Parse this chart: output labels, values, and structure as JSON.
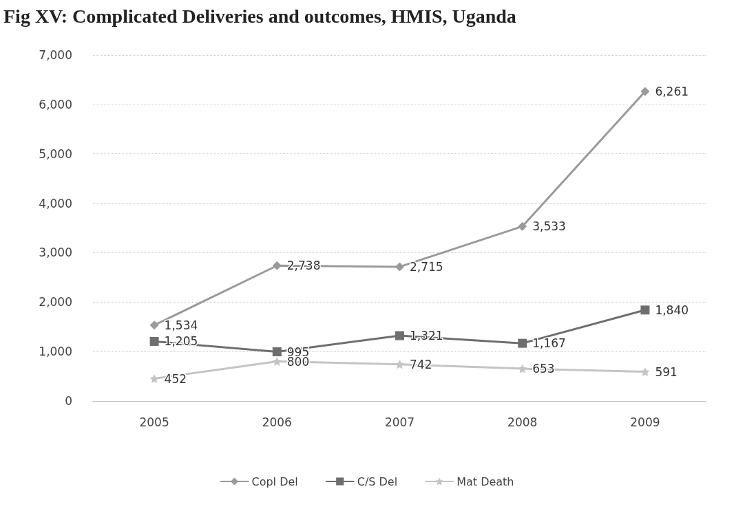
{
  "chart_data": {
    "type": "line",
    "title": "Fig XV: Complicated Deliveries and outcomes, HMIS, Uganda",
    "categories": [
      "2005",
      "2006",
      "2007",
      "2008",
      "2009"
    ],
    "series": [
      {
        "name": "Copl Del",
        "color": "#9a9a9a",
        "marker": "diamond",
        "values": [
          1534,
          2738,
          2715,
          3533,
          6261
        ],
        "value_labels": [
          "1,534",
          "2,738",
          "2,715",
          "3,533",
          "6,261"
        ]
      },
      {
        "name": "C/S Del",
        "color": "#6e6e6e",
        "marker": "square",
        "values": [
          1205,
          995,
          1321,
          1167,
          1840
        ],
        "value_labels": [
          "1,205",
          "995",
          "1,321",
          "1,167",
          "1,840"
        ]
      },
      {
        "name": "Mat Death",
        "color": "#c4c4c4",
        "marker": "star",
        "values": [
          452,
          800,
          742,
          653,
          591
        ],
        "value_labels": [
          "452",
          "800",
          "742",
          "653",
          "591"
        ]
      }
    ],
    "ylim": [
      0,
      7000
    ],
    "yticks": [
      0,
      {
        "value": 1000,
        "label": "1,000"
      },
      {
        "value": 2000,
        "label": "2,000"
      },
      {
        "value": 3000,
        "label": "3,000"
      },
      {
        "value": 4000,
        "label": "4,000"
      },
      {
        "value": 5000,
        "label": "5,000"
      },
      {
        "value": 6000,
        "label": "6,000"
      },
      {
        "value": 7000,
        "label": "7,000"
      }
    ],
    "grid": "y",
    "legend": "bottom",
    "line_style": "solid"
  }
}
